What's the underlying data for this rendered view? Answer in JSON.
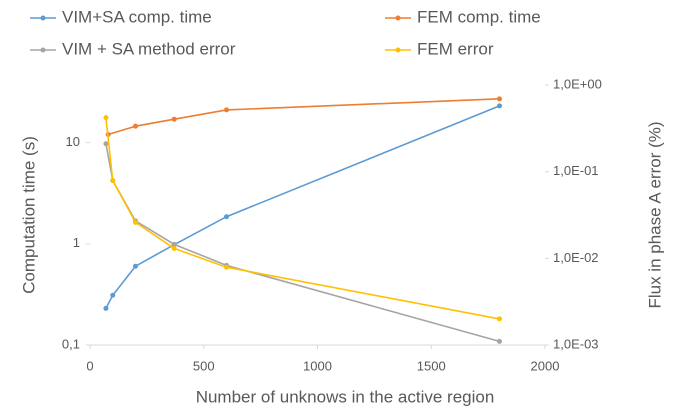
{
  "chart_data": {
    "type": "line",
    "x_label": "Number of unknows in the active region",
    "y_label": "Computation time (s)",
    "y2_label": "Flux in phase A error (%)",
    "xlim": [
      0,
      2000
    ],
    "xticks": [
      0,
      500,
      1000,
      1500,
      2000
    ],
    "ylim": [
      0.1,
      37
    ],
    "ylog": true,
    "yticks": [
      {
        "value": 0.1,
        "label": "0,1"
      },
      1,
      10
    ],
    "y2lim": [
      0.001,
      1
    ],
    "y2log": true,
    "y2ticks": [
      {
        "value": 0.001,
        "label": "1,0E-03"
      },
      {
        "value": 0.01,
        "label": "1,0E-02"
      },
      {
        "value": 0.1,
        "label": "1,0E-01"
      },
      {
        "value": 1,
        "label": "1,0E+00"
      }
    ],
    "legend": "top",
    "series": [
      {
        "name": "VIM+SA comp. time",
        "color": "#5b9bd5",
        "x": [
          70,
          100,
          200,
          370,
          600,
          1800
        ],
        "values": [
          0.23,
          0.31,
          0.6,
          0.98,
          1.85,
          23
        ]
      },
      {
        "name": "FEM comp. time",
        "color": "#ed7d31",
        "x": [
          80,
          200,
          370,
          600,
          1800
        ],
        "values": [
          12,
          14.5,
          17,
          21,
          27
        ]
      },
      {
        "name": "VIM + SA method error",
        "color": "#a5a5a5",
        "axis": "y2",
        "x": [
          70,
          100,
          200,
          370,
          600,
          1800
        ],
        "values": [
          0.21,
          0.079,
          0.027,
          0.0145,
          0.0083,
          0.0011
        ]
      },
      {
        "name": "FEM error",
        "color": "#ffc000",
        "axis": "y2",
        "x": [
          70,
          100,
          200,
          370,
          600,
          1800
        ],
        "values": [
          0.42,
          0.079,
          0.026,
          0.013,
          0.0079,
          0.002
        ]
      }
    ]
  }
}
